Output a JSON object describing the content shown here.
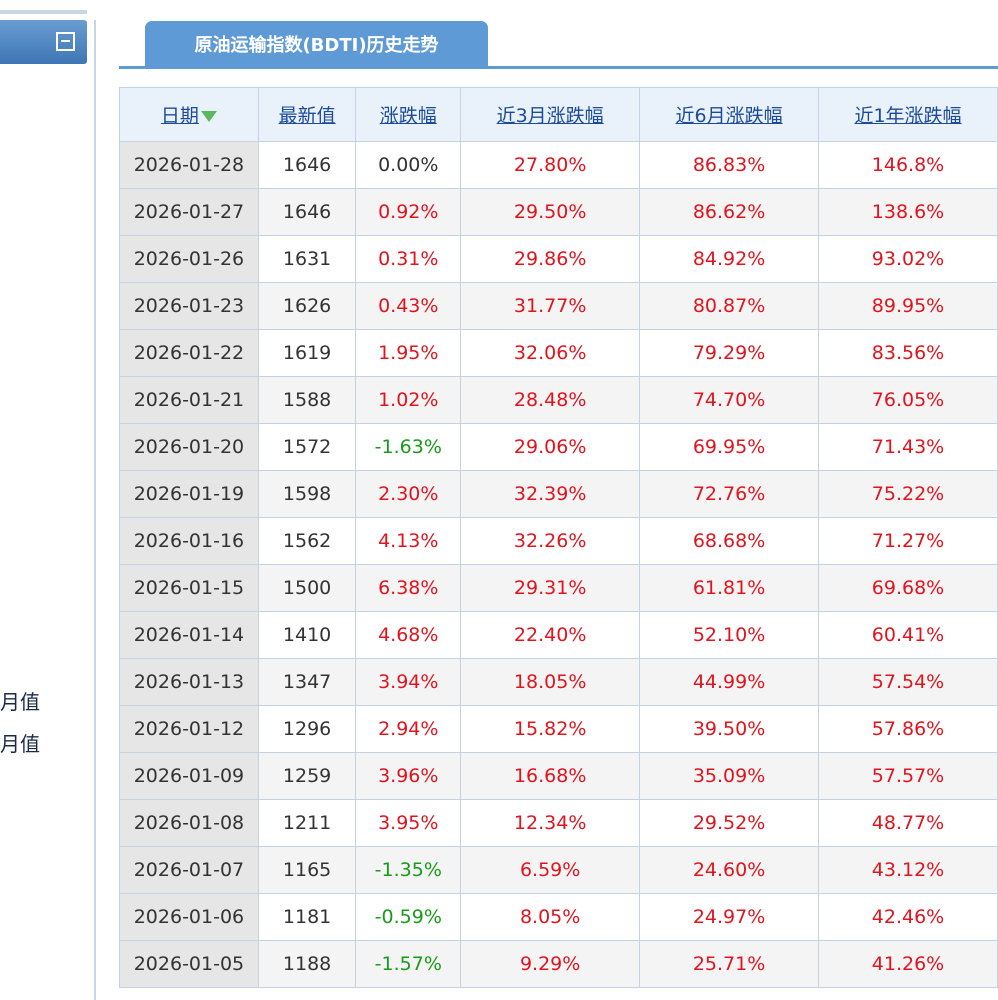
{
  "sidebar": {
    "links": [
      "月值",
      "月值"
    ]
  },
  "tab": {
    "title": "原油运输指数(BDTI)历史走势"
  },
  "table": {
    "columns": [
      "日期",
      "最新值",
      "涨跌幅",
      "近3月涨跌幅",
      "近6月涨跌幅",
      "近1年涨跌幅"
    ],
    "rows": [
      {
        "date": "2026-01-28",
        "value": "1646",
        "change": "0.00%",
        "m3": "27.80%",
        "m6": "86.83%",
        "y1": "146.8%",
        "dir": "neutral"
      },
      {
        "date": "2026-01-27",
        "value": "1646",
        "change": "0.92%",
        "m3": "29.50%",
        "m6": "86.62%",
        "y1": "138.6%",
        "dir": "up"
      },
      {
        "date": "2026-01-26",
        "value": "1631",
        "change": "0.31%",
        "m3": "29.86%",
        "m6": "84.92%",
        "y1": "93.02%",
        "dir": "up"
      },
      {
        "date": "2026-01-23",
        "value": "1626",
        "change": "0.43%",
        "m3": "31.77%",
        "m6": "80.87%",
        "y1": "89.95%",
        "dir": "up"
      },
      {
        "date": "2026-01-22",
        "value": "1619",
        "change": "1.95%",
        "m3": "32.06%",
        "m6": "79.29%",
        "y1": "83.56%",
        "dir": "up"
      },
      {
        "date": "2026-01-21",
        "value": "1588",
        "change": "1.02%",
        "m3": "28.48%",
        "m6": "74.70%",
        "y1": "76.05%",
        "dir": "up"
      },
      {
        "date": "2026-01-20",
        "value": "1572",
        "change": "-1.63%",
        "m3": "29.06%",
        "m6": "69.95%",
        "y1": "71.43%",
        "dir": "down"
      },
      {
        "date": "2026-01-19",
        "value": "1598",
        "change": "2.30%",
        "m3": "32.39%",
        "m6": "72.76%",
        "y1": "75.22%",
        "dir": "up"
      },
      {
        "date": "2026-01-16",
        "value": "1562",
        "change": "4.13%",
        "m3": "32.26%",
        "m6": "68.68%",
        "y1": "71.27%",
        "dir": "up"
      },
      {
        "date": "2026-01-15",
        "value": "1500",
        "change": "6.38%",
        "m3": "29.31%",
        "m6": "61.81%",
        "y1": "69.68%",
        "dir": "up"
      },
      {
        "date": "2026-01-14",
        "value": "1410",
        "change": "4.68%",
        "m3": "22.40%",
        "m6": "52.10%",
        "y1": "60.41%",
        "dir": "up"
      },
      {
        "date": "2026-01-13",
        "value": "1347",
        "change": "3.94%",
        "m3": "18.05%",
        "m6": "44.99%",
        "y1": "57.54%",
        "dir": "up"
      },
      {
        "date": "2026-01-12",
        "value": "1296",
        "change": "2.94%",
        "m3": "15.82%",
        "m6": "39.50%",
        "y1": "57.86%",
        "dir": "up"
      },
      {
        "date": "2026-01-09",
        "value": "1259",
        "change": "3.96%",
        "m3": "16.68%",
        "m6": "35.09%",
        "y1": "57.57%",
        "dir": "up"
      },
      {
        "date": "2026-01-08",
        "value": "1211",
        "change": "3.95%",
        "m3": "12.34%",
        "m6": "29.52%",
        "y1": "48.77%",
        "dir": "up"
      },
      {
        "date": "2026-01-07",
        "value": "1165",
        "change": "-1.35%",
        "m3": "6.59%",
        "m6": "24.60%",
        "y1": "43.12%",
        "dir": "down"
      },
      {
        "date": "2026-01-06",
        "value": "1181",
        "change": "-0.59%",
        "m3": "8.05%",
        "m6": "24.97%",
        "y1": "42.46%",
        "dir": "down"
      },
      {
        "date": "2026-01-05",
        "value": "1188",
        "change": "-1.57%",
        "m3": "9.29%",
        "m6": "25.71%",
        "y1": "41.26%",
        "dir": "down"
      }
    ]
  },
  "colors": {
    "up": "#e1141e",
    "down": "#1a9a1a",
    "accent": "#5e9ad5",
    "header_link": "#1c4b9a"
  },
  "icons": {
    "sort": "sort-desc-arrow-icon",
    "collapse": "collapse-minus-icon"
  }
}
